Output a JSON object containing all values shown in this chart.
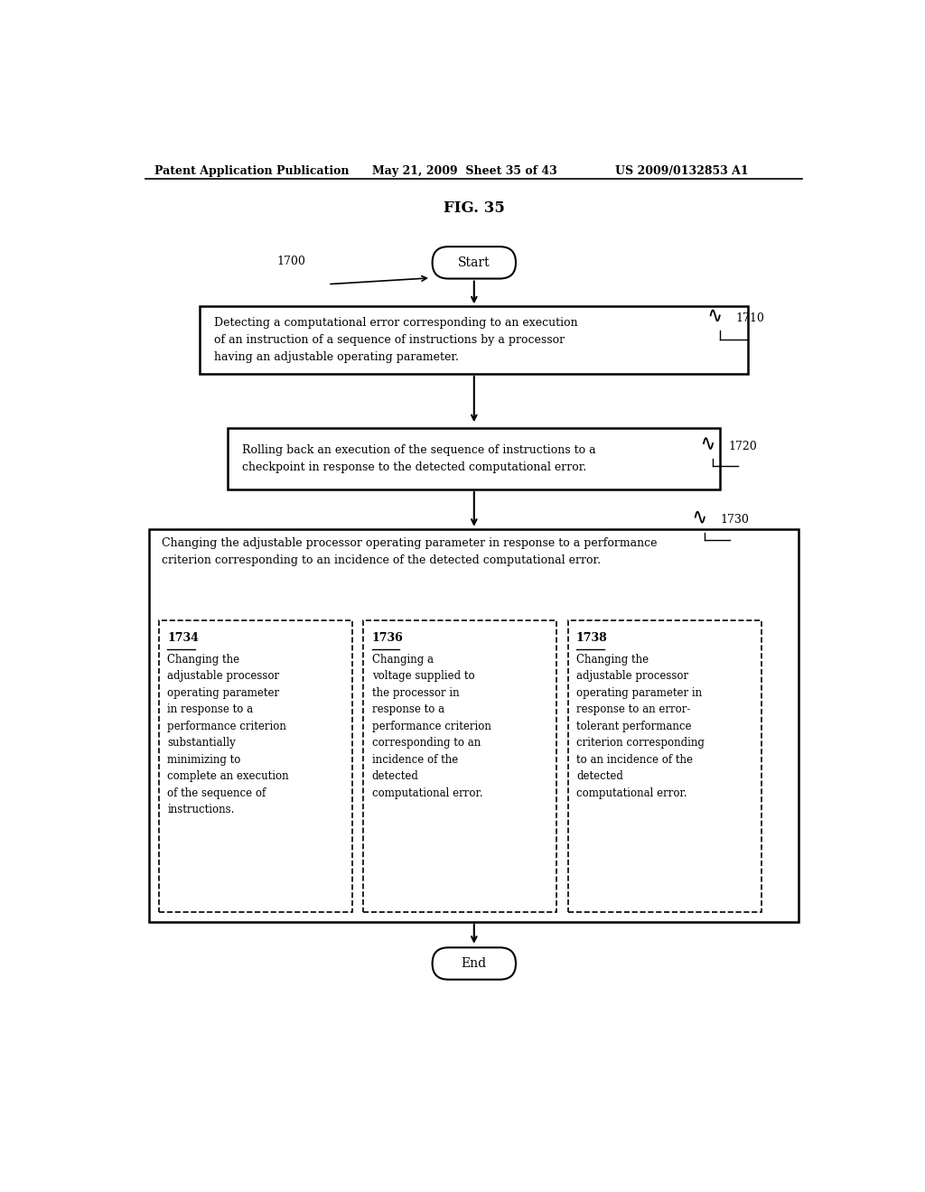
{
  "fig_title": "FIG. 35",
  "header_left": "Patent Application Publication",
  "header_mid": "May 21, 2009  Sheet 35 of 43",
  "header_right": "US 2009/0132853 A1",
  "start_label": "Start",
  "end_label": "End",
  "ref_1700": "1700",
  "ref_1710": "1710",
  "ref_1720": "1720",
  "ref_1730": "1730",
  "box1_text": "Detecting a computational error corresponding to an execution\nof an instruction of a sequence of instructions by a processor\nhaving an adjustable operating parameter.",
  "box2_text": "Rolling back an execution of the sequence of instructions to a\ncheckpoint in response to the detected computational error.",
  "box3_header": "Changing the adjustable processor operating parameter in response to a performance\ncriterion corresponding to an incidence of the detected computational error.",
  "sub1_num": "1734",
  "sub1_text": "Changing the\nadjustable processor\noperating parameter\nin response to a\nperformance criterion\nsubstantially\nminimizing to\ncomplete an execution\nof the sequence of\ninstructions.",
  "sub2_num": "1736",
  "sub2_text": "Changing a\nvoltage supplied to\nthe processor in\nresponse to a\nperformance criterion\ncorresponding to an\nincidence of the\ndetected\ncomputational error.",
  "sub3_num": "1738",
  "sub3_text": "Changing the\nadjustable processor\noperating parameter in\nresponse to an error-\ntolerant performance\ncriterion corresponding\nto an incidence of the\ndetected\ncomputational error.",
  "bg_color": "#ffffff",
  "box_edge_color": "#000000",
  "text_color": "#000000",
  "arrow_color": "#000000"
}
